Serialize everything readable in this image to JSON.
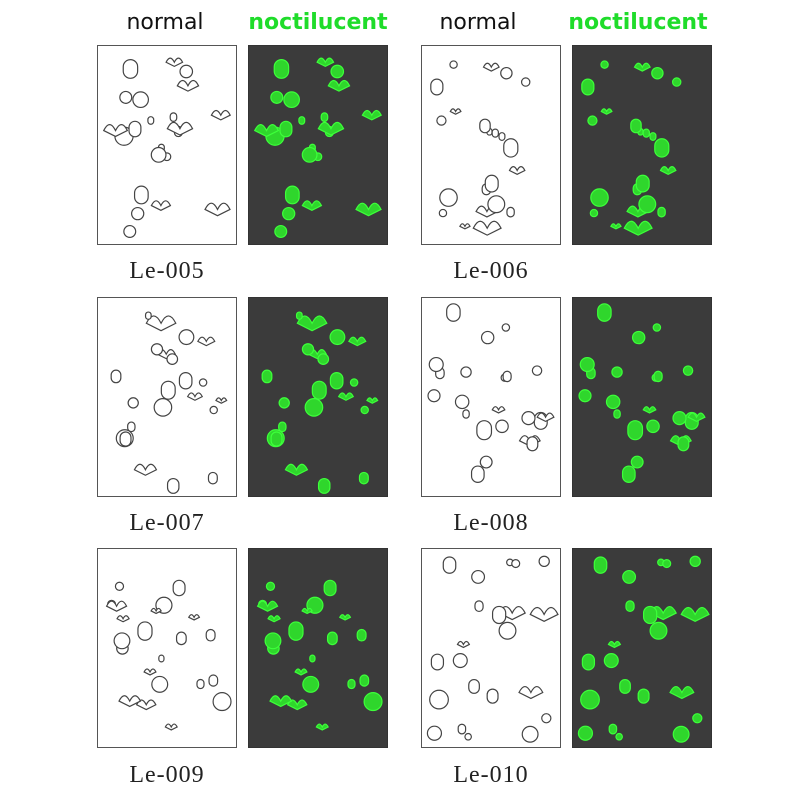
{
  "headers": [
    "normal",
    "noctilucent",
    "normal",
    "noctilucent"
  ],
  "codes": [
    "Le-005",
    "Le-006",
    "Le-007",
    "Le-008",
    "Le-009",
    "Le-010"
  ]
}
